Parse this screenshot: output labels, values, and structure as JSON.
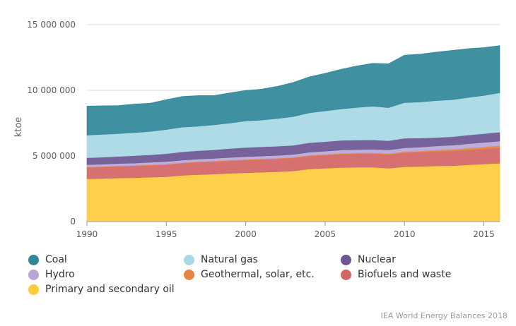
{
  "chart_data": {
    "type": "area",
    "stacked": true,
    "ylabel": "ktoe",
    "ylim": [
      0,
      15000000
    ],
    "y_ticks": [
      "0",
      "5 000 000",
      "10 000 000",
      "15 000 000"
    ],
    "y_tick_values": [
      0,
      5000000,
      10000000,
      15000000
    ],
    "x_ticks": [
      "1990",
      "1995",
      "2000",
      "2005",
      "2010",
      "2015"
    ],
    "x_tick_values": [
      1990,
      1995,
      2000,
      2005,
      2010,
      2015
    ],
    "xlim": [
      1990,
      2016
    ],
    "grid": "horizontal",
    "legend_position": "bottom",
    "x": [
      1990,
      1991,
      1992,
      1993,
      1994,
      1995,
      1996,
      1997,
      1998,
      1999,
      2000,
      2001,
      2002,
      2003,
      2004,
      2005,
      2006,
      2007,
      2008,
      2009,
      2010,
      2011,
      2012,
      2013,
      2014,
      2015,
      2016
    ],
    "series": [
      {
        "name": "Primary and secondary oil",
        "color": "#fecb3b",
        "values": [
          3260000,
          3280000,
          3320000,
          3340000,
          3380000,
          3420000,
          3520000,
          3580000,
          3620000,
          3680000,
          3720000,
          3760000,
          3800000,
          3860000,
          4000000,
          4060000,
          4120000,
          4140000,
          4140000,
          4060000,
          4180000,
          4200000,
          4240000,
          4260000,
          4320000,
          4380000,
          4440000
        ]
      },
      {
        "name": "Biofuels and waste",
        "color": "#d46565",
        "values": [
          860000,
          870000,
          880000,
          890000,
          900000,
          910000,
          920000,
          930000,
          940000,
          950000,
          960000,
          965000,
          970000,
          980000,
          990000,
          1000000,
          1010000,
          1020000,
          1030000,
          1040000,
          1060000,
          1080000,
          1100000,
          1120000,
          1140000,
          1160000,
          1180000
        ]
      },
      {
        "name": "Geothermal, solar, etc.",
        "color": "#e58543",
        "values": [
          40000,
          40000,
          40000,
          41000,
          42000,
          43000,
          44000,
          45000,
          46000,
          47000,
          48000,
          50000,
          52000,
          54000,
          56000,
          58000,
          62000,
          66000,
          72000,
          80000,
          90000,
          100000,
          110000,
          120000,
          135000,
          150000,
          165000
        ]
      },
      {
        "name": "Hydro",
        "color": "#b8a7d6",
        "values": [
          180000,
          183000,
          185000,
          188000,
          192000,
          198000,
          200000,
          205000,
          208000,
          210000,
          220000,
          218000,
          222000,
          226000,
          240000,
          250000,
          260000,
          265000,
          275000,
          278000,
          295000,
          300000,
          315000,
          325000,
          335000,
          340000,
          345000
        ]
      },
      {
        "name": "Nuclear",
        "color": "#6b5592",
        "values": [
          520000,
          530000,
          540000,
          560000,
          570000,
          600000,
          630000,
          640000,
          650000,
          680000,
          690000,
          700000,
          700000,
          690000,
          720000,
          720000,
          730000,
          720000,
          710000,
          700000,
          720000,
          680000,
          640000,
          640000,
          660000,
          670000,
          680000
        ]
      },
      {
        "name": "Natural gas",
        "color": "#a8d8e5",
        "values": [
          1720000,
          1740000,
          1740000,
          1760000,
          1780000,
          1840000,
          1880000,
          1860000,
          1900000,
          1940000,
          2030000,
          2040000,
          2110000,
          2190000,
          2280000,
          2340000,
          2400000,
          2480000,
          2560000,
          2520000,
          2720000,
          2750000,
          2810000,
          2820000,
          2860000,
          2910000,
          3000000
        ]
      },
      {
        "name": "Coal",
        "color": "#2f8798",
        "values": [
          2220000,
          2180000,
          2140000,
          2180000,
          2160000,
          2280000,
          2340000,
          2340000,
          2240000,
          2300000,
          2320000,
          2360000,
          2450000,
          2600000,
          2740000,
          2870000,
          3020000,
          3170000,
          3270000,
          3350000,
          3615000,
          3650000,
          3700000,
          3760000,
          3730000,
          3650000,
          3600000
        ]
      }
    ],
    "legend_order": [
      "Coal",
      "Natural gas",
      "Nuclear",
      "Hydro",
      "Geothermal, solar, etc.",
      "Biofuels and waste",
      "Primary and secondary oil"
    ]
  },
  "source": "IEA World Energy Balances 2018"
}
